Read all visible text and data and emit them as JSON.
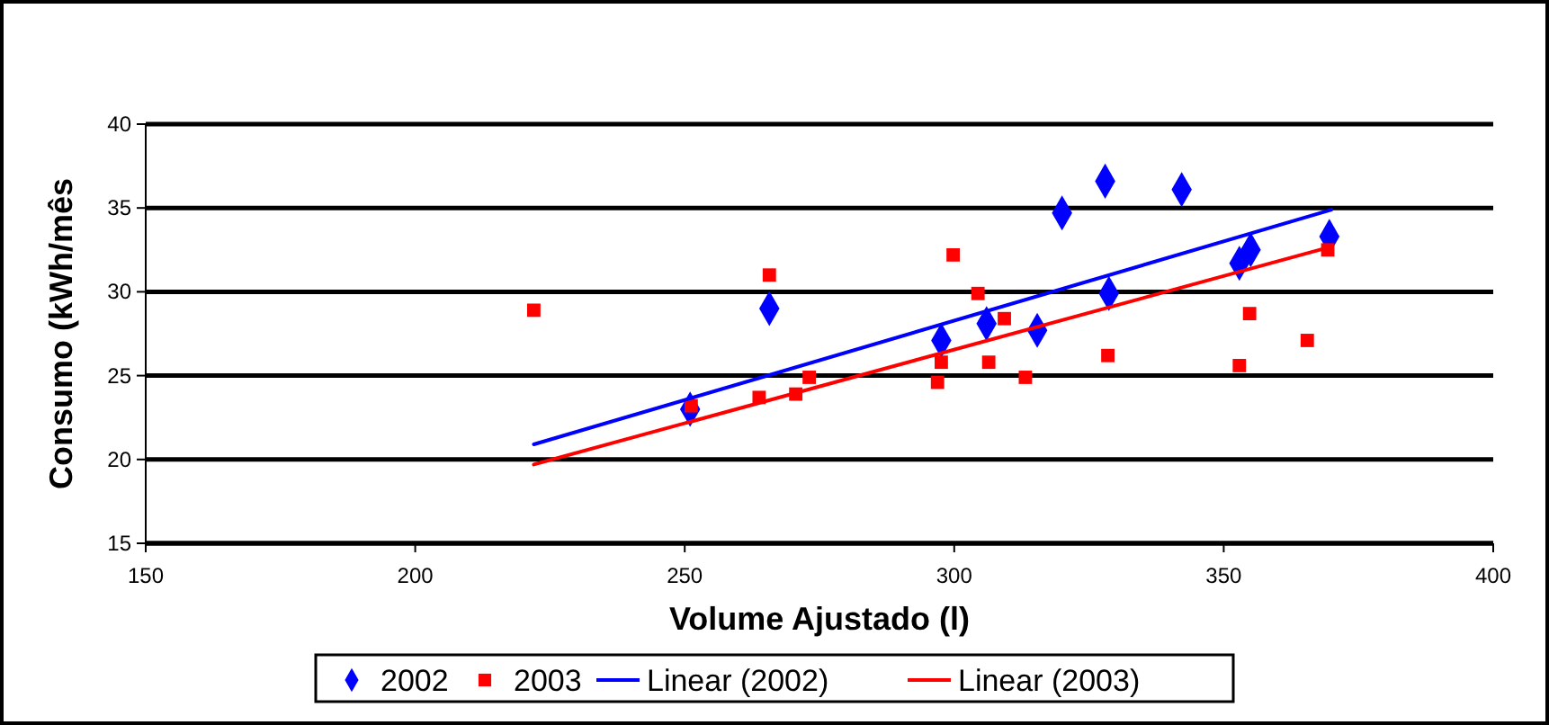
{
  "chart_data": {
    "type": "scatter",
    "xlabel": "Volume Ajustado (l)",
    "ylabel": "Consumo (kWh/mês",
    "xlim": [
      150,
      400
    ],
    "xticks": [
      150,
      200,
      250,
      300,
      350,
      400
    ],
    "ylim": [
      15,
      40
    ],
    "yticks": [
      15,
      20,
      25,
      30,
      35,
      40
    ],
    "grid": "y",
    "legend": "bottom",
    "series": [
      {
        "name": "2002",
        "color": "#0000ff",
        "marker": "diamond",
        "x": [
          265.7,
          251,
          297.6,
          306.0,
          315.4,
          320.0,
          328.0,
          328.7,
          342.2,
          352.9,
          355.0,
          369.6
        ],
        "values": [
          29.0,
          23.0,
          27.1,
          28.1,
          27.7,
          34.7,
          36.6,
          29.9,
          36.1,
          31.7,
          32.5,
          33.3
        ]
      },
      {
        "name": "2003",
        "color": "#ff0000",
        "marker": "square",
        "x": [
          222,
          265.7,
          251.2,
          263.8,
          270.6,
          273.1,
          297.6,
          296.9,
          299.8,
          304.4,
          309.3,
          306.4,
          313.2,
          328.5,
          354.8,
          352.9,
          365.5,
          369.3
        ],
        "values": [
          28.9,
          31.0,
          23.2,
          23.7,
          23.9,
          24.9,
          25.8,
          24.6,
          32.2,
          29.9,
          28.4,
          25.8,
          24.9,
          26.2,
          28.7,
          25.6,
          27.1,
          32.5
        ]
      },
      {
        "name": "Linear (2002)",
        "type": "line",
        "color": "#0000ff",
        "marker": "none",
        "x": [
          222,
          370
        ],
        "values": [
          20.9,
          34.9
        ]
      },
      {
        "name": "Linear (2003)",
        "type": "line",
        "color": "#ff0000",
        "marker": "none",
        "x": [
          222,
          370
        ],
        "values": [
          19.7,
          32.7
        ]
      }
    ]
  }
}
